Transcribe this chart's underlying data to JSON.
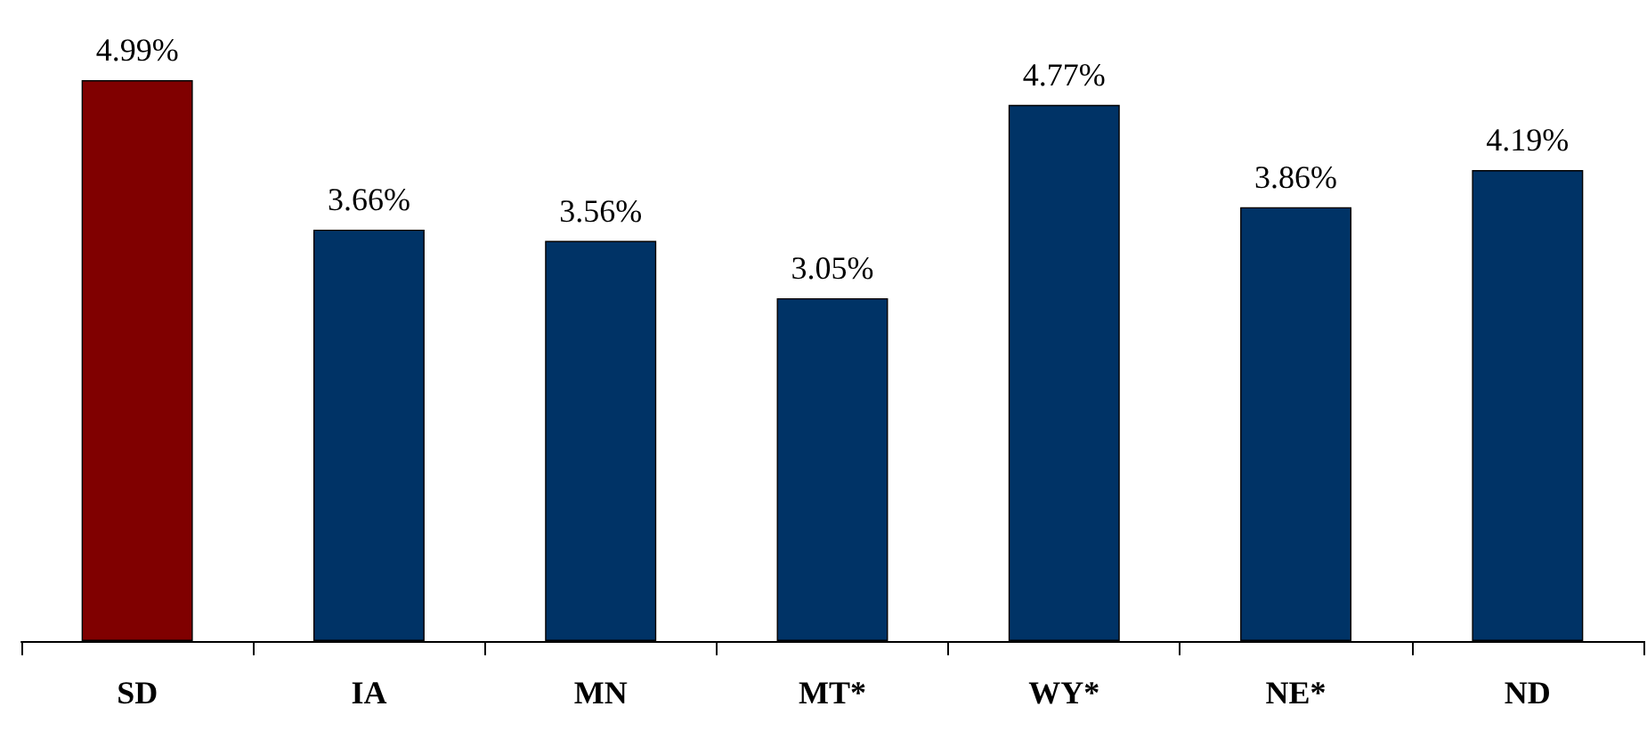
{
  "chart_data": {
    "type": "bar",
    "categories": [
      "SD",
      "IA",
      "MN",
      "MT*",
      "WY*",
      "NE*",
      "ND"
    ],
    "values": [
      4.99,
      3.66,
      3.56,
      3.05,
      4.77,
      3.86,
      4.19
    ],
    "value_labels": [
      "4.99%",
      "3.66%",
      "3.56%",
      "3.05%",
      "4.77%",
      "3.86%",
      "4.19%"
    ],
    "colors": [
      "#800000",
      "#003366",
      "#003366",
      "#003366",
      "#003366",
      "#003366",
      "#003366"
    ]
  }
}
